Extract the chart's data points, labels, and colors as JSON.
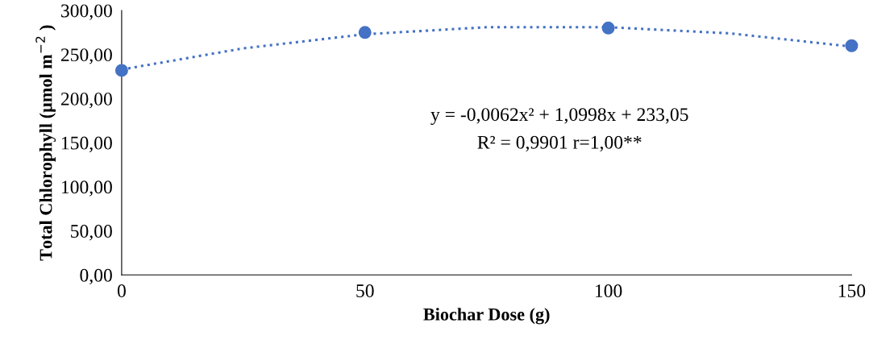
{
  "chart_data": {
    "type": "scatter",
    "xlabel": "Biochar Dose (g)",
    "ylabel": "Total Chlorophyll (µmol m$^{−2}$ )",
    "annotations": [
      "y = -0,0062x² + 1,0998x + 233,05",
      "R² = 0,9901 r=1,00**"
    ],
    "xlim": [
      0,
      150
    ],
    "xticks": [
      0,
      50,
      100,
      150
    ],
    "ylim": [
      0,
      300
    ],
    "yticks": [
      {
        "value": 0,
        "label": "0,00"
      },
      {
        "value": 50,
        "label": "50,00"
      },
      {
        "value": 100,
        "label": "100,00"
      },
      {
        "value": 150,
        "label": "150,00"
      },
      {
        "value": 200,
        "label": "200,00"
      },
      {
        "value": 250,
        "label": "250,00"
      },
      {
        "value": 300,
        "label": "300,00"
      }
    ],
    "grid": false,
    "legend": false,
    "series": [
      {
        "color": "#4472c4",
        "marker": "circle",
        "x": [
          0,
          50,
          100,
          150
        ],
        "values": [
          232,
          275,
          280,
          260
        ]
      },
      {
        "type": "line",
        "color": "#4472c4",
        "marker": "none",
        "line_style": "dotted",
        "x": [
          0,
          25,
          50,
          75,
          100,
          125,
          150
        ],
        "values": [
          233,
          257,
          273,
          281,
          281,
          274,
          259
        ]
      }
    ]
  }
}
